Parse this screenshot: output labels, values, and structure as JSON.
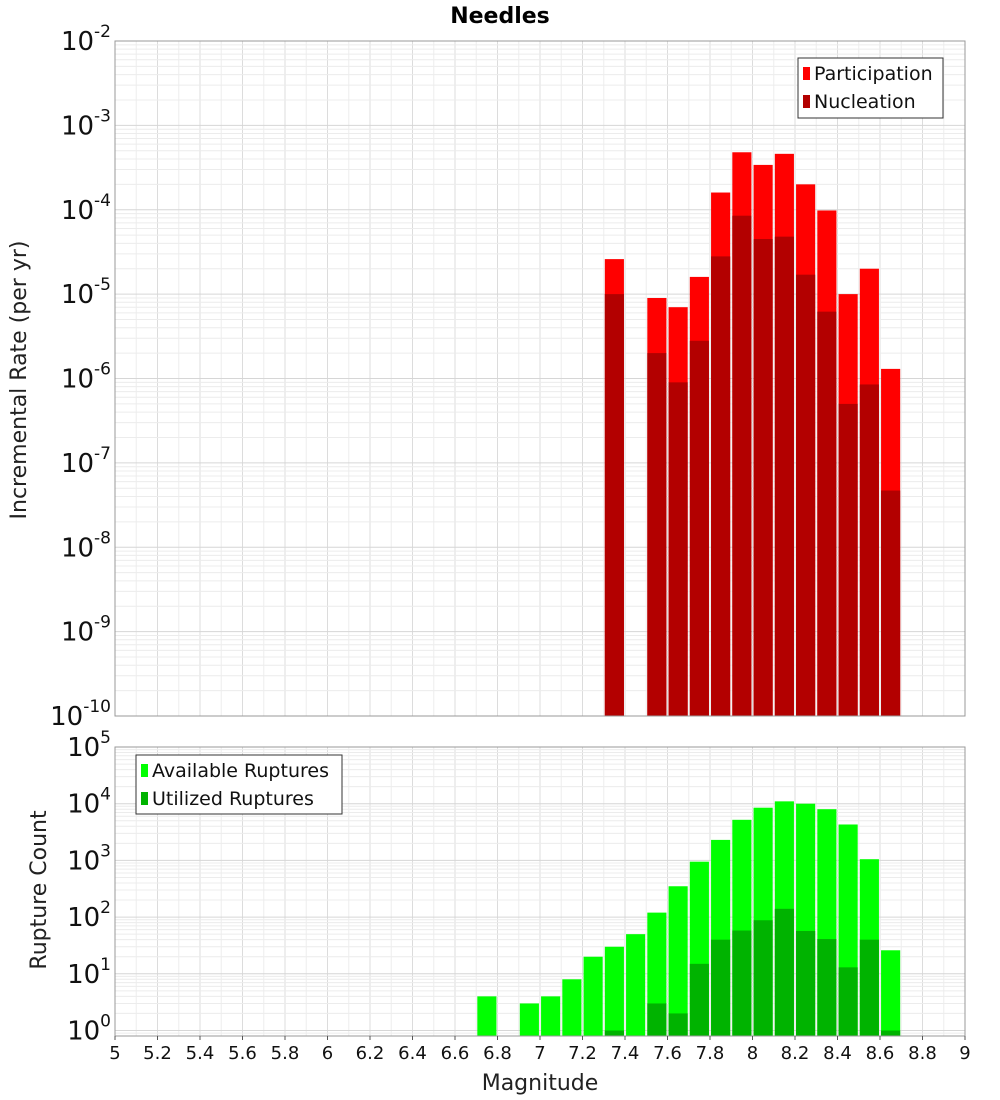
{
  "chart_data": [
    {
      "type": "bar",
      "title": "Needles",
      "xlabel": "",
      "ylabel": "Incremental Rate (per yr)",
      "xlim": [
        5,
        9
      ],
      "y_scale": "log",
      "ylim": [
        1e-10,
        0.01
      ],
      "y_ticks": [
        {
          "base": "10",
          "exp": "-2"
        },
        {
          "base": "10",
          "exp": "-3"
        },
        {
          "base": "10",
          "exp": "-4"
        },
        {
          "base": "10",
          "exp": "-5"
        },
        {
          "base": "10",
          "exp": "-6"
        },
        {
          "base": "10",
          "exp": "-7"
        },
        {
          "base": "10",
          "exp": "-8"
        },
        {
          "base": "10",
          "exp": "-9"
        },
        {
          "base": "10",
          "exp": "-10"
        }
      ],
      "grid": true,
      "legend_position": "top-right",
      "bar_width": 0.09,
      "series": [
        {
          "name": "Participation",
          "color": "#ff0000",
          "x": [
            7.35,
            7.55,
            7.65,
            7.75,
            7.85,
            7.95,
            8.05,
            8.15,
            8.25,
            8.35,
            8.45,
            8.55,
            8.65
          ],
          "values": [
            2.6e-05,
            9e-06,
            7e-06,
            1.6e-05,
            0.00016,
            0.00048,
            0.00034,
            0.00046,
            0.0002,
            9.8e-05,
            1e-05,
            2e-05,
            1.3e-06
          ]
        },
        {
          "name": "Nucleation",
          "color": "#b30000",
          "x": [
            7.35,
            7.55,
            7.65,
            7.75,
            7.85,
            7.95,
            8.05,
            8.15,
            8.25,
            8.35,
            8.45,
            8.55,
            8.65
          ],
          "values": [
            1e-05,
            2e-06,
            9e-07,
            2.8e-06,
            2.8e-05,
            8.5e-05,
            4.5e-05,
            4.8e-05,
            1.7e-05,
            6.2e-06,
            5e-07,
            8.5e-07,
            4.7e-08
          ]
        }
      ]
    },
    {
      "type": "bar",
      "title": "",
      "xlabel": "Magnitude",
      "ylabel": "Rupture Count",
      "xlim": [
        5,
        9
      ],
      "x_ticks": [
        "5",
        "5.2",
        "5.4",
        "5.6",
        "5.8",
        "6",
        "6.2",
        "6.4",
        "6.6",
        "6.8",
        "7",
        "7.2",
        "7.4",
        "7.6",
        "7.8",
        "8",
        "8.2",
        "8.4",
        "8.6",
        "8.8",
        "9"
      ],
      "y_scale": "log",
      "ylim": [
        0.8,
        100000
      ],
      "y_ticks": [
        {
          "base": "10",
          "exp": "5"
        },
        {
          "base": "10",
          "exp": "4"
        },
        {
          "base": "10",
          "exp": "3"
        },
        {
          "base": "10",
          "exp": "2"
        },
        {
          "base": "10",
          "exp": "1"
        },
        {
          "base": "10",
          "exp": "0"
        }
      ],
      "grid": true,
      "legend_position": "top-left",
      "bar_width": 0.09,
      "series": [
        {
          "name": "Available Ruptures",
          "color": "#00ff00",
          "x": [
            6.75,
            6.95,
            7.05,
            7.15,
            7.25,
            7.35,
            7.45,
            7.55,
            7.65,
            7.75,
            7.85,
            7.95,
            8.05,
            8.15,
            8.25,
            8.35,
            8.45,
            8.55,
            8.65
          ],
          "values": [
            4,
            3,
            4,
            8,
            20,
            30,
            50,
            120,
            350,
            950,
            2300,
            5200,
            8500,
            11000,
            10000,
            8000,
            4300,
            1050,
            26
          ]
        },
        {
          "name": "Utilized Ruptures",
          "color": "#00b300",
          "x": [
            7.35,
            7.55,
            7.65,
            7.75,
            7.85,
            7.95,
            8.05,
            8.15,
            8.25,
            8.35,
            8.45,
            8.55,
            8.65
          ],
          "values": [
            1,
            3,
            2,
            15,
            40,
            58,
            88,
            140,
            57,
            41,
            13,
            40,
            1
          ]
        }
      ]
    }
  ]
}
